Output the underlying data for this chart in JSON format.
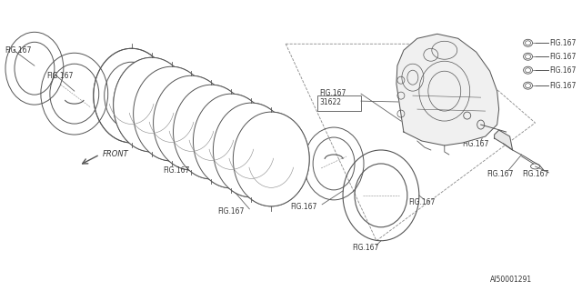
{
  "bg_color": "#ffffff",
  "line_color": "#555555",
  "label_color": "#333333",
  "fig_label": "FIG.167",
  "part_number": "31622",
  "diagram_code": "AI50001291",
  "front_label": "FRONT",
  "fig_size": [
    6.4,
    3.2
  ],
  "dpi": 100
}
